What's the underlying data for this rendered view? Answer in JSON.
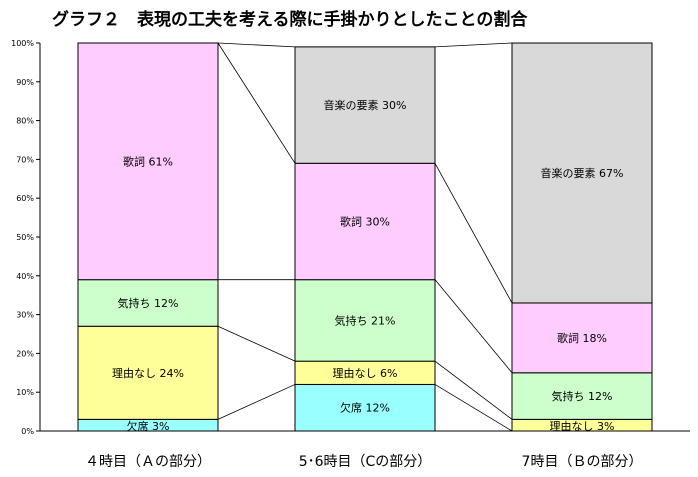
{
  "chart_data": {
    "type": "bar",
    "stacked": true,
    "percent": true,
    "title": "グラフ２　表現の工夫を考える際に手掛かりとしたことの割合",
    "categories": [
      "４時目（Ａの部分）",
      "5･6時目（Cの部分）",
      "7時目（Ｂの部分）"
    ],
    "ylim": [
      0,
      100
    ],
    "yticks": [
      "0%",
      "10%",
      "20%",
      "30%",
      "40%",
      "50%",
      "60%",
      "70%",
      "80%",
      "90%",
      "100%"
    ],
    "grid": false,
    "series_lines": true,
    "series": [
      {
        "name": "欠席",
        "color": "#99ffff",
        "values": [
          3,
          12,
          0
        ],
        "labels": [
          "欠席 3%",
          "欠席 12%",
          ""
        ]
      },
      {
        "name": "理由なし",
        "color": "#ffff99",
        "values": [
          24,
          6,
          3
        ],
        "labels": [
          "理由なし 24%",
          "理由なし 6%",
          "理由なし 3%"
        ]
      },
      {
        "name": "気持ち",
        "color": "#ccffcc",
        "values": [
          12,
          21,
          12
        ],
        "labels": [
          "気持ち 12%",
          "気持ち 21%",
          "気持ち 12%"
        ]
      },
      {
        "name": "歌詞",
        "color": "#ffccff",
        "values": [
          61,
          30,
          18
        ],
        "labels": [
          "歌詞 61%",
          "歌詞 30%",
          "歌詞 18%"
        ]
      },
      {
        "name": "音楽の要素",
        "color": "#d9d9d9",
        "values": [
          0,
          30,
          67
        ],
        "labels": [
          "",
          "音楽の要素 30%",
          "音楽の要素 67%"
        ]
      }
    ]
  }
}
